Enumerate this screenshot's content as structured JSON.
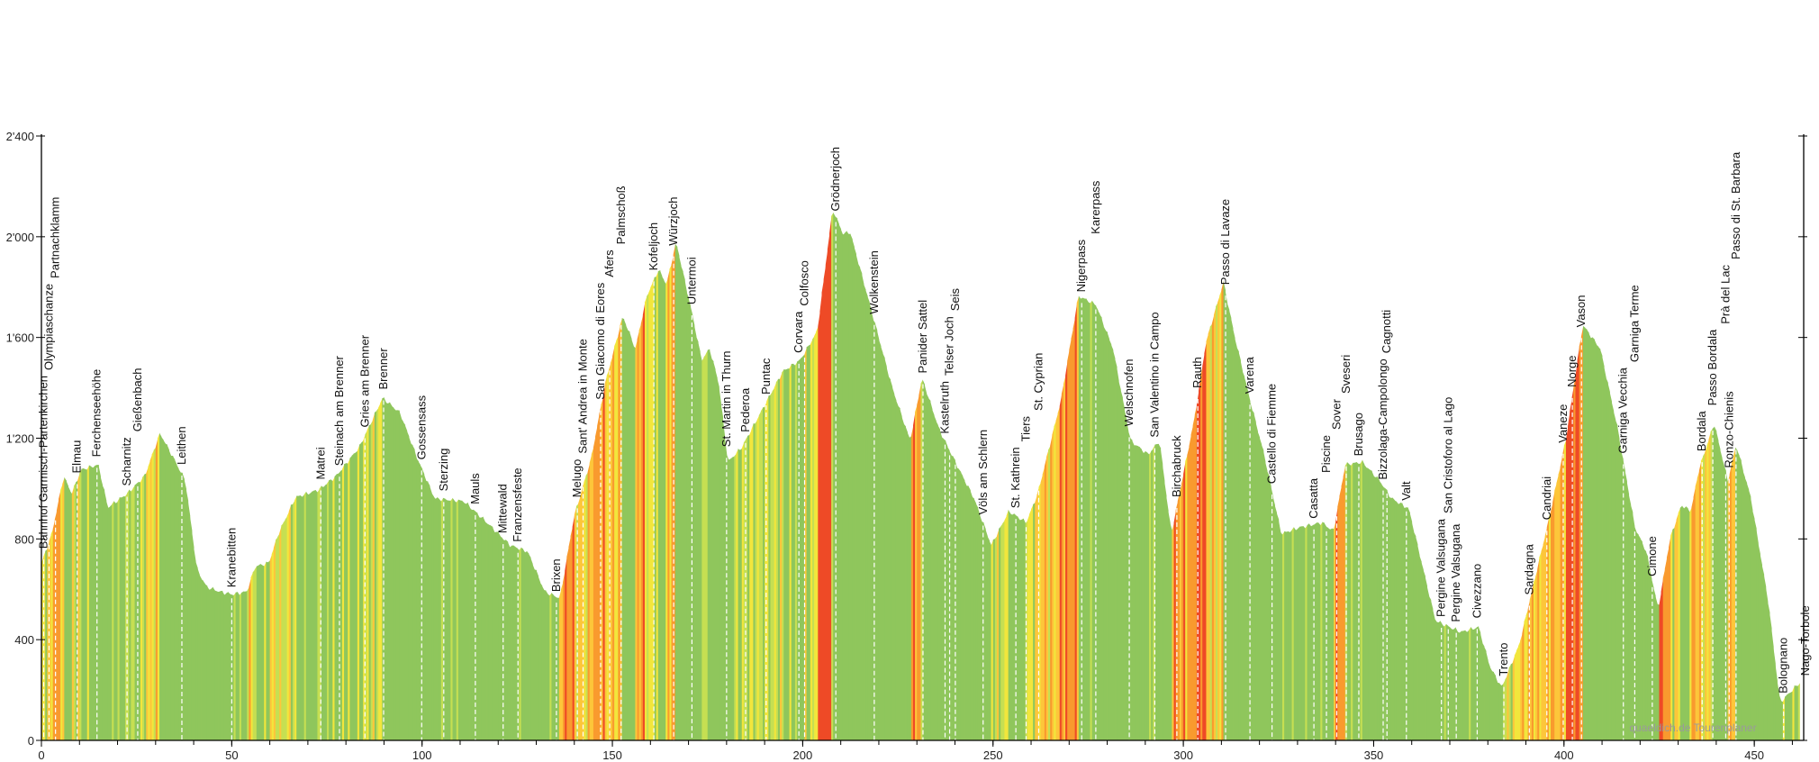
{
  "chart_data": {
    "type": "area",
    "title": "",
    "xlabel": "",
    "ylabel": "",
    "xlim": [
      0,
      465
    ],
    "ylim": [
      0,
      2400
    ],
    "x_ticks": [
      0,
      50,
      100,
      150,
      200,
      250,
      300,
      350,
      400,
      450
    ],
    "y_ticks": [
      0,
      400,
      800,
      1200,
      1600,
      2000,
      2400
    ],
    "y_tick_labels": [
      "0",
      "400",
      "800",
      "1'200",
      "1'600",
      "2'000",
      "2'400"
    ],
    "gradient_colors": {
      "flat": "#8fc65c",
      "easy": "#c6df52",
      "moderate": "#f2e63c",
      "steep": "#fdc63a",
      "very_steep": "#f99a2e",
      "extreme": "#ee4a26"
    },
    "profile": [
      [
        0,
        705
      ],
      [
        2.7,
        820
      ],
      [
        5.8,
        1050
      ],
      [
        7.9,
        980
      ],
      [
        10.4,
        1075
      ],
      [
        14.9,
        1095
      ],
      [
        17.4,
        925
      ],
      [
        22.5,
        980
      ],
      [
        27.1,
        1050
      ],
      [
        31.1,
        1220
      ],
      [
        34.7,
        1120
      ],
      [
        37.8,
        1030
      ],
      [
        40.8,
        680
      ],
      [
        43.3,
        610
      ],
      [
        46.9,
        590
      ],
      [
        50,
        580
      ],
      [
        53.9,
        590
      ],
      [
        56.1,
        690
      ],
      [
        59.7,
        705
      ],
      [
        62.2,
        820
      ],
      [
        66.7,
        965
      ],
      [
        72.8,
        995
      ],
      [
        77.4,
        1050
      ],
      [
        83.5,
        1165
      ],
      [
        89.6,
        1360
      ],
      [
        94.2,
        1300
      ],
      [
        98.7,
        1120
      ],
      [
        103.3,
        960
      ],
      [
        110.9,
        950
      ],
      [
        117,
        865
      ],
      [
        123.1,
        775
      ],
      [
        127.7,
        750
      ],
      [
        132.2,
        590
      ],
      [
        136.2,
        565
      ],
      [
        139.9,
        890
      ],
      [
        144.4,
        1120
      ],
      [
        148.1,
        1420
      ],
      [
        152.7,
        1685
      ],
      [
        156,
        1555
      ],
      [
        159,
        1765
      ],
      [
        162.1,
        1870
      ],
      [
        164.2,
        1810
      ],
      [
        166.7,
        1980
      ],
      [
        170.9,
        1695
      ],
      [
        173.4,
        1510
      ],
      [
        175.5,
        1555
      ],
      [
        177.9,
        1420
      ],
      [
        180.3,
        1105
      ],
      [
        184,
        1165
      ],
      [
        190.1,
        1335
      ],
      [
        194.7,
        1465
      ],
      [
        199.3,
        1510
      ],
      [
        203.8,
        1625
      ],
      [
        207.8,
        2110
      ],
      [
        210.6,
        2010
      ],
      [
        212.4,
        2020
      ],
      [
        217.6,
        1730
      ],
      [
        223.6,
        1395
      ],
      [
        228.2,
        1190
      ],
      [
        231.3,
        1440
      ],
      [
        235.8,
        1235
      ],
      [
        240.4,
        1095
      ],
      [
        245,
        960
      ],
      [
        249.5,
        775
      ],
      [
        254.1,
        910
      ],
      [
        258.7,
        865
      ],
      [
        261.7,
        980
      ],
      [
        267.8,
        1350
      ],
      [
        272.4,
        1765
      ],
      [
        277,
        1730
      ],
      [
        281.5,
        1555
      ],
      [
        286.1,
        1190
      ],
      [
        290.7,
        1135
      ],
      [
        293.7,
        1190
      ],
      [
        296.8,
        820
      ],
      [
        302.9,
        1280
      ],
      [
        305.9,
        1580
      ],
      [
        310.5,
        1820
      ],
      [
        313.5,
        1600
      ],
      [
        317.5,
        1350
      ],
      [
        321.1,
        1140
      ],
      [
        325.7,
        820
      ],
      [
        330.3,
        845
      ],
      [
        336.4,
        865
      ],
      [
        339.4,
        830
      ],
      [
        342.5,
        1095
      ],
      [
        347,
        1105
      ],
      [
        351.6,
        1030
      ],
      [
        354.7,
        960
      ],
      [
        359.2,
        920
      ],
      [
        366.2,
        475
      ],
      [
        372.9,
        430
      ],
      [
        377.5,
        450
      ],
      [
        380.6,
        290
      ],
      [
        383.6,
        210
      ],
      [
        388.2,
        380
      ],
      [
        395.8,
        865
      ],
      [
        400.4,
        1190
      ],
      [
        404.9,
        1650
      ],
      [
        409.5,
        1555
      ],
      [
        414.1,
        1235
      ],
      [
        418.6,
        845
      ],
      [
        421.6,
        750
      ],
      [
        424.7,
        520
      ],
      [
        427.8,
        800
      ],
      [
        430.8,
        935
      ],
      [
        433.3,
        910
      ],
      [
        435.4,
        1075
      ],
      [
        439.4,
        1260
      ],
      [
        443,
        1030
      ],
      [
        445.2,
        1175
      ],
      [
        449.1,
        960
      ],
      [
        453.7,
        545
      ],
      [
        456.7,
        150
      ],
      [
        461.9,
        230
      ]
    ],
    "waypoints": [
      {
        "name": "Bahnhof Garmisch-Partenkirchen",
        "km": 0.6
      },
      {
        "name": "Olympiaschanze",
        "km": 2
      },
      {
        "name": "Partnachklamm",
        "km": 3.7
      },
      {
        "name": "Elmau",
        "km": 9.4
      },
      {
        "name": "Ferchenseehöhe",
        "km": 14.6
      },
      {
        "name": "Scharnitz",
        "km": 22.5
      },
      {
        "name": "Gießenbach",
        "km": 25.3
      },
      {
        "name": "Leithen",
        "km": 36.9
      },
      {
        "name": "Kranebitten",
        "km": 50
      },
      {
        "name": "Matrei",
        "km": 73.4
      },
      {
        "name": "Steinach am Brenner",
        "km": 78.3
      },
      {
        "name": "Gries am Brenner",
        "km": 85
      },
      {
        "name": "Brenner",
        "km": 89.9
      },
      {
        "name": "Gossensass",
        "km": 99.9
      },
      {
        "name": "Sterzing",
        "km": 105.7
      },
      {
        "name": "Mauls",
        "km": 114
      },
      {
        "name": "Mittewald",
        "km": 121.3
      },
      {
        "name": "Franzensfeste",
        "km": 125.2
      },
      {
        "name": "Brixen",
        "km": 135.3
      },
      {
        "name": "Melugo",
        "km": 140.8
      },
      {
        "name": "Sant' Andrea in Monte",
        "km": 142.3
      },
      {
        "name": "San Giacomo di Eores",
        "km": 146.9
      },
      {
        "name": "Afers",
        "km": 149.3
      },
      {
        "name": "Palmschoß",
        "km": 152.3
      },
      {
        "name": "Kofeljoch",
        "km": 160.9
      },
      {
        "name": "Würzjoch",
        "km": 166.1
      },
      {
        "name": "Untermoi",
        "km": 170.9
      },
      {
        "name": "St. Martin in Thurn",
        "km": 180
      },
      {
        "name": "Pederoa",
        "km": 185
      },
      {
        "name": "Puntac",
        "km": 190.4
      },
      {
        "name": "Corvara",
        "km": 199
      },
      {
        "name": "Colfosco",
        "km": 200.5
      },
      {
        "name": "Grödnerjoch",
        "km": 208.7
      },
      {
        "name": "Wolkenstein",
        "km": 218.8
      },
      {
        "name": "Panider Sattel",
        "km": 231.6
      },
      {
        "name": "Kastelruth",
        "km": 237.4
      },
      {
        "name": "Telser Joch",
        "km": 238.6
      },
      {
        "name": "Seis",
        "km": 240.1
      },
      {
        "name": "Völs am Schlern",
        "km": 247.4
      },
      {
        "name": "St. Kathrein",
        "km": 256
      },
      {
        "name": "Tiers",
        "km": 258.7
      },
      {
        "name": "St. Cyprian",
        "km": 262
      },
      {
        "name": "Nigerpass",
        "km": 273.3
      },
      {
        "name": "Karerpass",
        "km": 277
      },
      {
        "name": "Welschnofen",
        "km": 285.8
      },
      {
        "name": "San Valentino in Campo",
        "km": 292.5
      },
      {
        "name": "Birchabruck",
        "km": 298.3
      },
      {
        "name": "Rauth",
        "km": 303.8
      },
      {
        "name": "Passo di Lavaze",
        "km": 311.1
      },
      {
        "name": "Varena",
        "km": 317.5
      },
      {
        "name": "Castello di Fiemme",
        "km": 323.3
      },
      {
        "name": "Casatta",
        "km": 334.3
      },
      {
        "name": "Piscine",
        "km": 337.6
      },
      {
        "name": "Sover",
        "km": 340.3
      },
      {
        "name": "Sveseri",
        "km": 342.8
      },
      {
        "name": "Brusago",
        "km": 346.1
      },
      {
        "name": "Bizzolaga-Campolongo",
        "km": 352.5
      },
      {
        "name": "Cagnotti",
        "km": 353.5
      },
      {
        "name": "Valt",
        "km": 358.6
      },
      {
        "name": "Pergine Valsugana",
        "km": 367.8
      },
      {
        "name": "San Cristoforo al Lago",
        "km": 369.6
      },
      {
        "name": "Pergine Valsugana",
        "km": 371.7
      },
      {
        "name": "Civezzano",
        "km": 377.2
      },
      {
        "name": "Trento",
        "km": 384.2
      },
      {
        "name": "Sardagna",
        "km": 390.9
      },
      {
        "name": "Candriai",
        "km": 395.5
      },
      {
        "name": "Vaneze",
        "km": 399.8
      },
      {
        "name": "Norge",
        "km": 402.2
      },
      {
        "name": "Vason",
        "km": 404.6
      },
      {
        "name": "Garniga Vecchia",
        "km": 415.6
      },
      {
        "name": "Garniga Terme",
        "km": 418.6
      },
      {
        "name": "Cimone",
        "km": 423.2
      },
      {
        "name": "Bordala",
        "km": 436.3
      },
      {
        "name": "Passo Bordala",
        "km": 439.1
      },
      {
        "name": "Prà del Lac",
        "km": 442.5
      },
      {
        "name": "Ronzo-Chienis",
        "km": 443.4
      },
      {
        "name": "Passo di St. Barbara",
        "km": 445.2
      },
      {
        "name": "Bolognano",
        "km": 457.7
      },
      {
        "name": "Nago-Torbole",
        "km": 463.4
      }
    ],
    "grid": false,
    "legend": "none"
  },
  "watermark": "quaeldich.de Tourenplaner"
}
